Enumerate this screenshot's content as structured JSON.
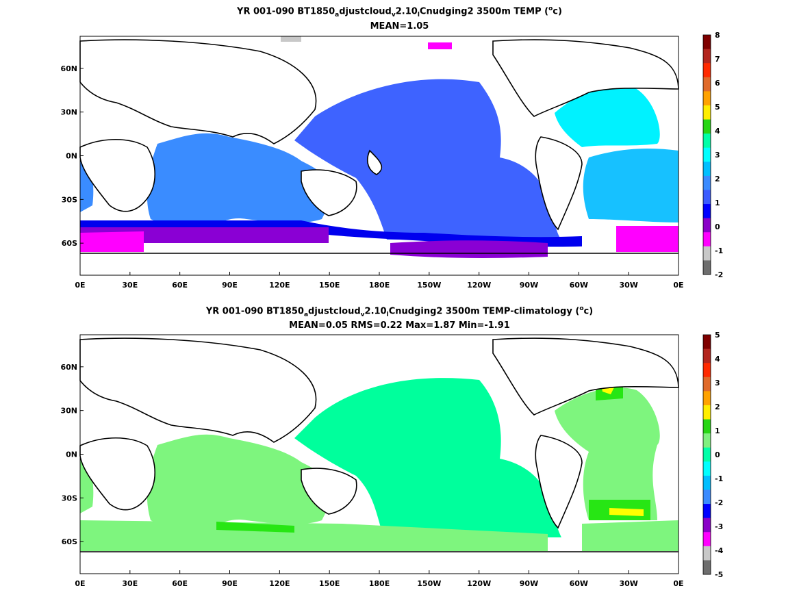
{
  "panels": [
    {
      "title": {
        "prefix": "YR 001-090 BT1850",
        "sub1": "a",
        "mid1": "djustcloud",
        "sub2": "v",
        "mid2": "2.10",
        "sub3": "l",
        "mid3": "Cnudging2 3500m TEMP (",
        "sup": "o",
        "suffix": "c)"
      },
      "stats": "MEAN=1.05",
      "colorbar": {
        "labels": [
          "8",
          "7",
          "6",
          "5",
          "4",
          "3",
          "2",
          "1",
          "0",
          "-1",
          "-2"
        ],
        "colors": [
          "#7f0000",
          "#b3261e",
          "#ff2a00",
          "#e06a2a",
          "#ffa200",
          "#ffee00",
          "#27d614",
          "#00ffa8",
          "#00ffff",
          "#00bfff",
          "#3b8bff",
          "#3b5bff",
          "#0000ff",
          "#8a00c8",
          "#ff00ff",
          "#c8c8c8",
          "#6e6e6e"
        ]
      },
      "colors": {
        "pacific_fill": "#3e63ff",
        "atlantic_fill": "#00f2ff",
        "atlantic_south_fill": "#17c1ff",
        "indian_fill": "#3a8cff",
        "southern_blue": "#0000ee",
        "southern_purple": "#8a00d4",
        "southern_magenta": "#ff00ff",
        "gray_patch": "#c8c8c8"
      }
    },
    {
      "title": {
        "prefix": "YR 001-090 BT1850",
        "sub1": "a",
        "mid1": "djustcloud",
        "sub2": "v",
        "mid2": "2.10",
        "sub3": "l",
        "mid3": "Cnudging2 3500m TEMP-climatology (",
        "sup": "o",
        "suffix": "c)"
      },
      "stats": "MEAN=0.05   RMS=0.22   Max=1.87   Min=-1.91",
      "colorbar": {
        "labels": [
          "5",
          "4",
          "3",
          "2",
          "1",
          "0",
          "-1",
          "-2",
          "-3",
          "-4",
          "-5"
        ],
        "colors": [
          "#7f0000",
          "#b3261e",
          "#ff2a00",
          "#e06a2a",
          "#ffa200",
          "#ffee00",
          "#27d614",
          "#7ff07f",
          "#00ffa8",
          "#00ffff",
          "#00bfff",
          "#3b8bff",
          "#0000ff",
          "#8a00c8",
          "#ff00ff",
          "#c8c8c8",
          "#6e6e6e"
        ]
      },
      "colors": {
        "main_fill": "#00ff9c",
        "light_green": "#7ef57e",
        "green": "#27e614",
        "yellow": "#ffff00"
      }
    }
  ],
  "axes": {
    "x_ticks": [
      "0E",
      "30E",
      "60E",
      "90E",
      "120E",
      "150E",
      "180E",
      "150W",
      "120W",
      "90W",
      "60W",
      "30W",
      "0E"
    ],
    "y_ticks": [
      "60N",
      "30N",
      "0N",
      "30S",
      "60S"
    ]
  }
}
